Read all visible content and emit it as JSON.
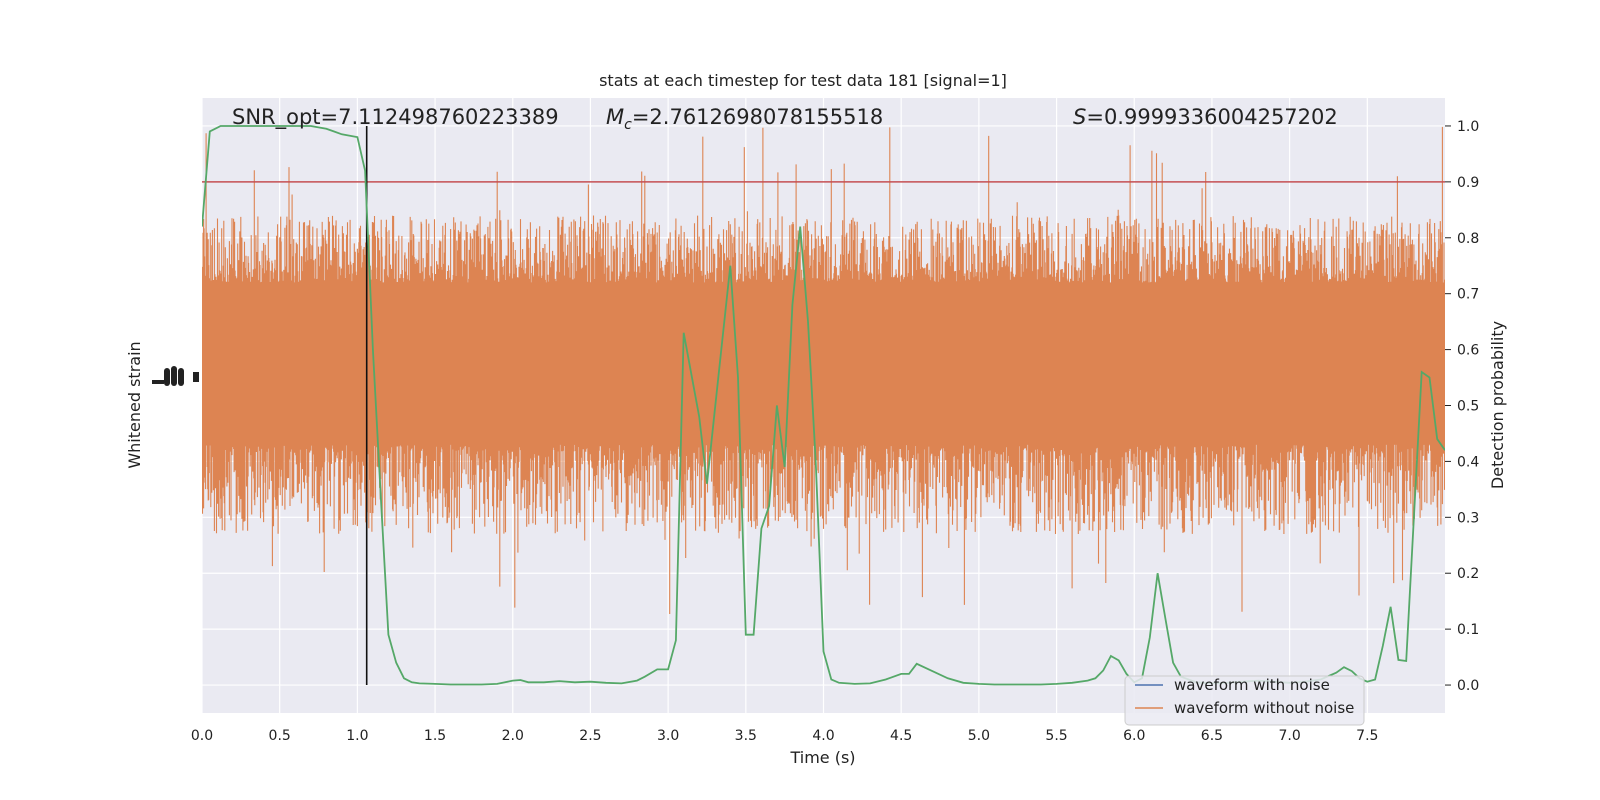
{
  "chart_data": {
    "type": "line",
    "title": "stats at each timestep for test data 181 [signal=1]",
    "xlabel": "Time (s)",
    "ylabel_left": "Whitened strain",
    "ylabel_right": "Detection probability",
    "xlim": [
      0.0,
      8.0
    ],
    "ylim_right": [
      -0.05,
      1.05
    ],
    "xticks": [
      "0.0",
      "0.5",
      "1.0",
      "1.5",
      "2.0",
      "2.5",
      "3.0",
      "3.5",
      "4.0",
      "4.5",
      "5.0",
      "5.5",
      "6.0",
      "6.5",
      "7.0",
      "7.5"
    ],
    "yticks_right": [
      "0.0",
      "0.1",
      "0.2",
      "0.3",
      "0.4",
      "0.5",
      "0.6",
      "0.7",
      "0.8",
      "0.9",
      "1.0"
    ],
    "grid": true,
    "annotations": {
      "snr_label": "SNR_opt=7.112498760223389",
      "mc_symbol": "M",
      "mc_subscript": "c",
      "mc_value": "=2.7612698078155518",
      "s_symbol": "S",
      "s_value": "=0.9999336004257202"
    },
    "threshold": {
      "y": 0.9,
      "color": "#c44e52"
    },
    "merger_time": 1.06,
    "legend": {
      "location": "lower-right",
      "entries": [
        {
          "label": "waveform with noise",
          "color": "#4c72b0"
        },
        {
          "label": "waveform without noise",
          "color": "#dd8452"
        }
      ]
    },
    "strain_noise": {
      "color": "#dd8452",
      "band_probability_units": [
        0.43,
        0.72
      ],
      "typical_peak_range": [
        0.27,
        0.84
      ],
      "max_excursion_range": [
        0.0,
        1.0
      ]
    },
    "series": [
      {
        "name": "Detection probability",
        "color": "#55a868",
        "x": [
          0.0,
          0.05,
          0.12,
          0.2,
          0.3,
          0.4,
          0.5,
          0.6,
          0.7,
          0.8,
          0.85,
          0.9,
          1.0,
          1.05,
          1.1,
          1.15,
          1.2,
          1.25,
          1.3,
          1.35,
          1.4,
          1.5,
          1.6,
          1.7,
          1.8,
          1.9,
          2.0,
          2.05,
          2.1,
          2.2,
          2.3,
          2.4,
          2.5,
          2.6,
          2.7,
          2.8,
          2.85,
          2.93,
          3.0,
          3.05,
          3.1,
          3.2,
          3.25,
          3.3,
          3.4,
          3.45,
          3.5,
          3.55,
          3.6,
          3.65,
          3.7,
          3.75,
          3.8,
          3.85,
          3.9,
          3.95,
          4.0,
          4.05,
          4.1,
          4.2,
          4.3,
          4.4,
          4.5,
          4.55,
          4.6,
          4.7,
          4.8,
          4.9,
          5.0,
          5.1,
          5.2,
          5.3,
          5.4,
          5.5,
          5.6,
          5.7,
          5.75,
          5.8,
          5.85,
          5.9,
          5.95,
          6.0,
          6.05,
          6.1,
          6.15,
          6.2,
          6.25,
          6.3,
          6.4,
          6.5,
          6.6,
          6.7,
          6.8,
          6.9,
          7.0,
          7.1,
          7.2,
          7.3,
          7.35,
          7.4,
          7.45,
          7.5,
          7.55,
          7.6,
          7.65,
          7.7,
          7.75,
          7.8,
          7.85,
          7.9,
          7.95,
          8.0
        ],
        "y": [
          0.82,
          0.99,
          1.0,
          1.0,
          1.0,
          1.0,
          1.0,
          1.0,
          1.0,
          0.995,
          0.99,
          0.985,
          0.98,
          0.92,
          0.6,
          0.34,
          0.09,
          0.04,
          0.012,
          0.005,
          0.003,
          0.002,
          0.001,
          0.001,
          0.001,
          0.002,
          0.008,
          0.009,
          0.005,
          0.005,
          0.007,
          0.005,
          0.006,
          0.004,
          0.003,
          0.008,
          0.015,
          0.028,
          0.028,
          0.08,
          0.63,
          0.48,
          0.36,
          0.49,
          0.75,
          0.55,
          0.09,
          0.09,
          0.28,
          0.32,
          0.5,
          0.39,
          0.68,
          0.82,
          0.65,
          0.4,
          0.06,
          0.01,
          0.004,
          0.002,
          0.003,
          0.01,
          0.02,
          0.02,
          0.038,
          0.025,
          0.012,
          0.004,
          0.002,
          0.001,
          0.001,
          0.001,
          0.001,
          0.002,
          0.004,
          0.008,
          0.012,
          0.026,
          0.052,
          0.044,
          0.02,
          0.005,
          0.012,
          0.085,
          0.2,
          0.12,
          0.04,
          0.015,
          0.005,
          0.003,
          0.004,
          0.006,
          0.008,
          0.006,
          0.004,
          0.006,
          0.01,
          0.022,
          0.032,
          0.025,
          0.012,
          0.006,
          0.01,
          0.07,
          0.14,
          0.045,
          0.043,
          0.3,
          0.56,
          0.55,
          0.44,
          0.42
        ]
      }
    ]
  }
}
